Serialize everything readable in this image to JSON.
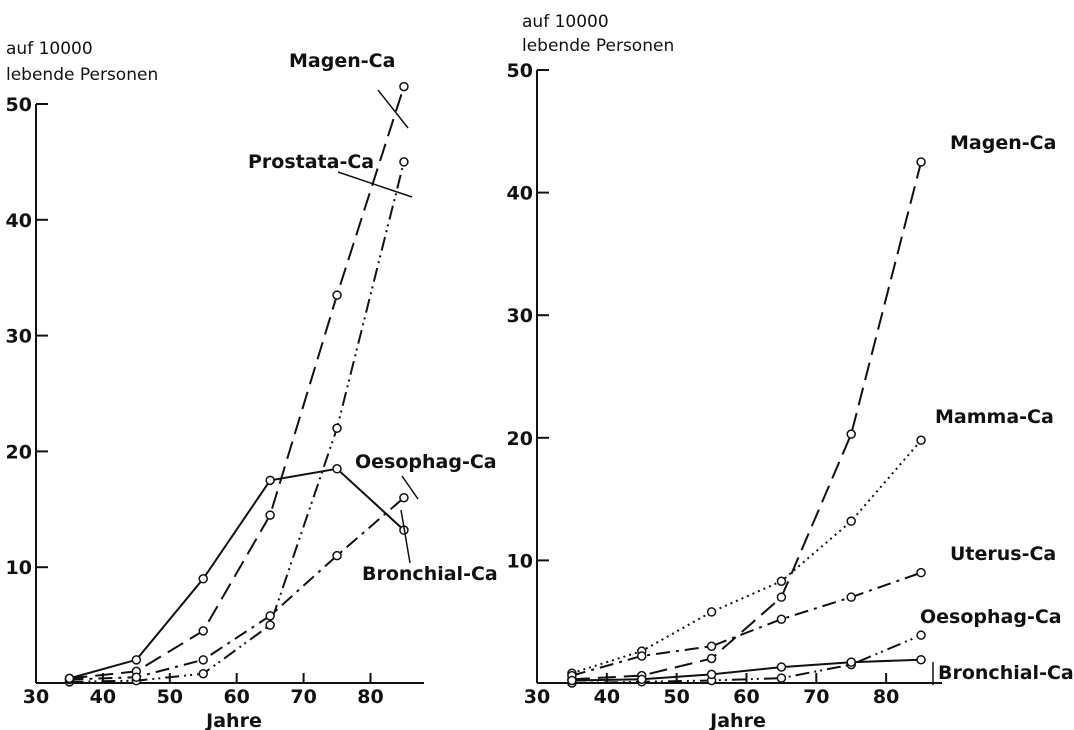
{
  "chart_data": [
    {
      "type": "line",
      "ylabel": "auf 10000 lebende Personen",
      "xlabel": "Jahre",
      "xlim": [
        30,
        88
      ],
      "ylim": [
        0,
        50
      ],
      "xticks": [
        30,
        40,
        50,
        60,
        70,
        80
      ],
      "yticks": [
        10,
        20,
        30,
        40,
        50
      ],
      "grid": false,
      "legend": "direct labels",
      "series": [
        {
          "name": "Magen-Ca",
          "style": "dashed",
          "x": [
            35,
            45,
            55,
            65,
            75,
            85
          ],
          "y": [
            0.4,
            1.0,
            4.5,
            14.5,
            33.5,
            51.5
          ]
        },
        {
          "name": "Prostata-Ca",
          "style": "dash-dot-dot",
          "x": [
            35,
            45,
            55,
            65,
            75,
            85
          ],
          "y": [
            0.1,
            0.2,
            0.8,
            5.0,
            22.0,
            45.0
          ]
        },
        {
          "name": "Oesophag-Ca",
          "style": "dash-dot",
          "x": [
            35,
            45,
            55,
            65,
            75,
            85
          ],
          "y": [
            0.3,
            0.5,
            2.0,
            5.8,
            11.0,
            16.0
          ]
        },
        {
          "name": "Bronchial-Ca",
          "style": "solid",
          "x": [
            35,
            45,
            55,
            65,
            75,
            85
          ],
          "y": [
            0.4,
            2.0,
            9.0,
            17.5,
            18.5,
            13.2
          ]
        }
      ]
    },
    {
      "type": "line",
      "ylabel": "auf 10000 lebende Personen",
      "xlabel": "Jahre",
      "xlim": [
        30,
        88
      ],
      "ylim": [
        0,
        50
      ],
      "xticks": [
        30,
        40,
        50,
        60,
        70,
        80
      ],
      "yticks": [
        10,
        20,
        30,
        40,
        50
      ],
      "grid": false,
      "legend": "direct labels",
      "series": [
        {
          "name": "Magen-Ca",
          "style": "dashed",
          "x": [
            35,
            45,
            55,
            65,
            75,
            85
          ],
          "y": [
            0.3,
            0.6,
            2.0,
            7.0,
            20.3,
            42.5
          ]
        },
        {
          "name": "Mamma-Ca",
          "style": "dotted",
          "x": [
            35,
            45,
            55,
            65,
            75,
            85
          ],
          "y": [
            0.8,
            2.6,
            5.8,
            8.3,
            13.2,
            19.8
          ]
        },
        {
          "name": "Uterus-Ca",
          "style": "dash-dot",
          "x": [
            35,
            45,
            55,
            65,
            75,
            85
          ],
          "y": [
            0.6,
            2.2,
            3.0,
            5.2,
            7.0,
            9.0
          ]
        },
        {
          "name": "Oesophag-Ca",
          "style": "dash-dot-dot",
          "x": [
            35,
            45,
            55,
            65,
            75,
            85
          ],
          "y": [
            0.0,
            0.1,
            0.2,
            0.4,
            1.5,
            3.9
          ]
        },
        {
          "name": "Bronchial-Ca",
          "style": "solid",
          "x": [
            35,
            45,
            55,
            65,
            75,
            85
          ],
          "y": [
            0.2,
            0.3,
            0.7,
            1.3,
            1.7,
            1.9
          ]
        }
      ]
    }
  ]
}
